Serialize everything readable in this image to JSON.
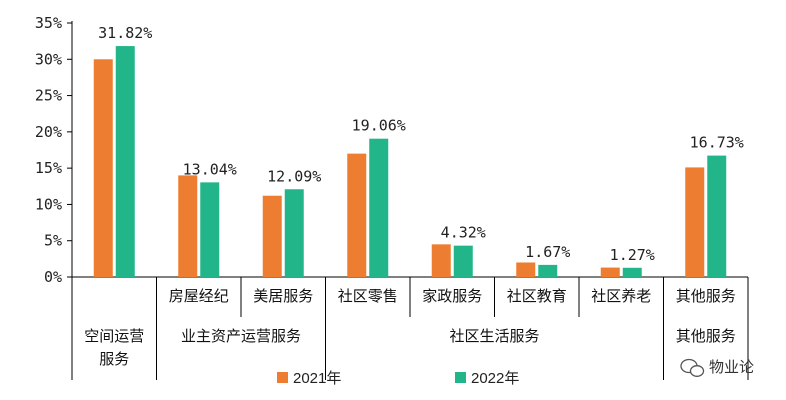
{
  "colors": {
    "series_2021": "#ED7D31",
    "series_2022": "#22B58A",
    "axis": "#000000"
  },
  "chart_data": {
    "type": "bar",
    "title": "",
    "xlabel": "",
    "ylabel": "",
    "ylim": [
      0,
      35
    ],
    "yticks": [
      "0%",
      "5%",
      "10%",
      "15%",
      "20%",
      "25%",
      "30%",
      "35%"
    ],
    "grid": false,
    "legend_position": "bottom",
    "categories": [
      {
        "label": [
          "空间运营",
          "服务"
        ],
        "group": ""
      },
      {
        "label": [
          "房屋经纪"
        ],
        "group": "业主资产运营服务"
      },
      {
        "label": [
          "美居服务"
        ],
        "group": "业主资产运营服务"
      },
      {
        "label": [
          "社区零售"
        ],
        "group": "社区生活服务"
      },
      {
        "label": [
          "家政服务"
        ],
        "group": "社区生活服务"
      },
      {
        "label": [
          "社区教育"
        ],
        "group": "社区生活服务"
      },
      {
        "label": [
          "社区养老"
        ],
        "group": "社区生活服务"
      },
      {
        "label": [
          "其他服务"
        ],
        "group": ""
      }
    ],
    "group_labels": {
      "asset": [
        "业主资产",
        "运营服务"
      ],
      "life": "社区生活服务",
      "other": "其他服务"
    },
    "series": [
      {
        "name": "2021年",
        "values": [
          30.0,
          14.0,
          11.2,
          17.0,
          4.5,
          2.0,
          1.3,
          15.1
        ]
      },
      {
        "name": "2022年",
        "values": [
          31.82,
          13.04,
          12.09,
          19.06,
          4.32,
          1.67,
          1.27,
          16.73
        ]
      }
    ],
    "data_labels": [
      "31.82%",
      "13.04%",
      "12.09%",
      "19.06%",
      "4.32%",
      "1.67%",
      "1.27%",
      "16.73%"
    ]
  },
  "watermark": {
    "text": "物业论",
    "icon": "wechat-bubble-icon"
  }
}
